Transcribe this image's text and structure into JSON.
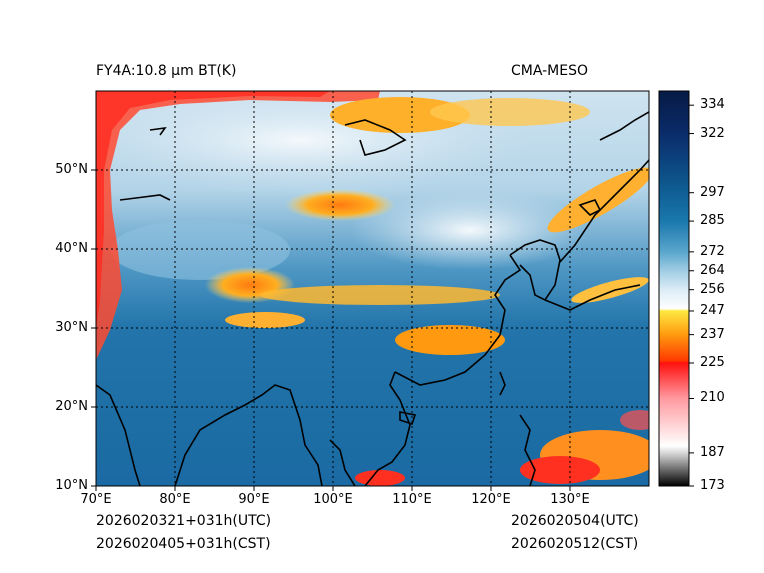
{
  "header": {
    "title": "FY4A:10.8 µm BT(K)",
    "source": "CMA-MESO"
  },
  "footer": {
    "init_utc": "2026020321+031h(UTC)",
    "init_cst": "2026020405+031h(CST)",
    "valid_utc": "2026020504(UTC)",
    "valid_cst": "2026020512(CST)"
  },
  "map": {
    "lon_range": [
      70,
      140
    ],
    "lat_range": [
      10,
      60
    ],
    "lat_ticks": [
      {
        "value": 50,
        "label": "50°N"
      },
      {
        "value": 40,
        "label": "40°N"
      },
      {
        "value": 30,
        "label": "30°N"
      },
      {
        "value": 20,
        "label": "20°N"
      },
      {
        "value": 10,
        "label": "10°N"
      }
    ],
    "lon_ticks": [
      {
        "value": 70,
        "label": "70°E"
      },
      {
        "value": 80,
        "label": "80°E"
      },
      {
        "value": 90,
        "label": "90°E"
      },
      {
        "value": 100,
        "label": "100°E"
      },
      {
        "value": 110,
        "label": "110°E"
      },
      {
        "value": 120,
        "label": "120°E"
      },
      {
        "value": 130,
        "label": "130°E"
      }
    ]
  },
  "colorbar": {
    "range": [
      173,
      340
    ],
    "ticks": [
      "334",
      "322",
      "297",
      "285",
      "272",
      "264",
      "256",
      "247",
      "237",
      "225",
      "210",
      "187",
      "173"
    ],
    "tick_values": [
      334,
      322,
      297,
      285,
      272,
      264,
      256,
      247,
      237,
      225,
      210,
      187,
      173
    ],
    "stops": [
      {
        "value": 173,
        "color": "#000000"
      },
      {
        "value": 187,
        "color": "#d8d8d8"
      },
      {
        "value": 190,
        "color": "#ffffff"
      },
      {
        "value": 210,
        "color": "#ff9aa0"
      },
      {
        "value": 225,
        "color": "#ff1010"
      },
      {
        "value": 226,
        "color": "#ff3a00"
      },
      {
        "value": 237,
        "color": "#ff9a10"
      },
      {
        "value": 247,
        "color": "#ffe840"
      },
      {
        "value": 248,
        "color": "#ffffff"
      },
      {
        "value": 256,
        "color": "#dcecf6"
      },
      {
        "value": 264,
        "color": "#a0cde4"
      },
      {
        "value": 272,
        "color": "#5aa6cc"
      },
      {
        "value": 285,
        "color": "#1a78ad"
      },
      {
        "value": 297,
        "color": "#0f5f95"
      },
      {
        "value": 322,
        "color": "#0a2c6a"
      },
      {
        "value": 340,
        "color": "#061a45"
      }
    ]
  },
  "colors": {
    "ocean_warm": "#1f6ea8",
    "land_tropical": "#2368a3",
    "cold_cloud": "#ff9a10",
    "very_cold_cloud": "#ff2020",
    "coastline": "#000000",
    "grid": "#000000"
  }
}
